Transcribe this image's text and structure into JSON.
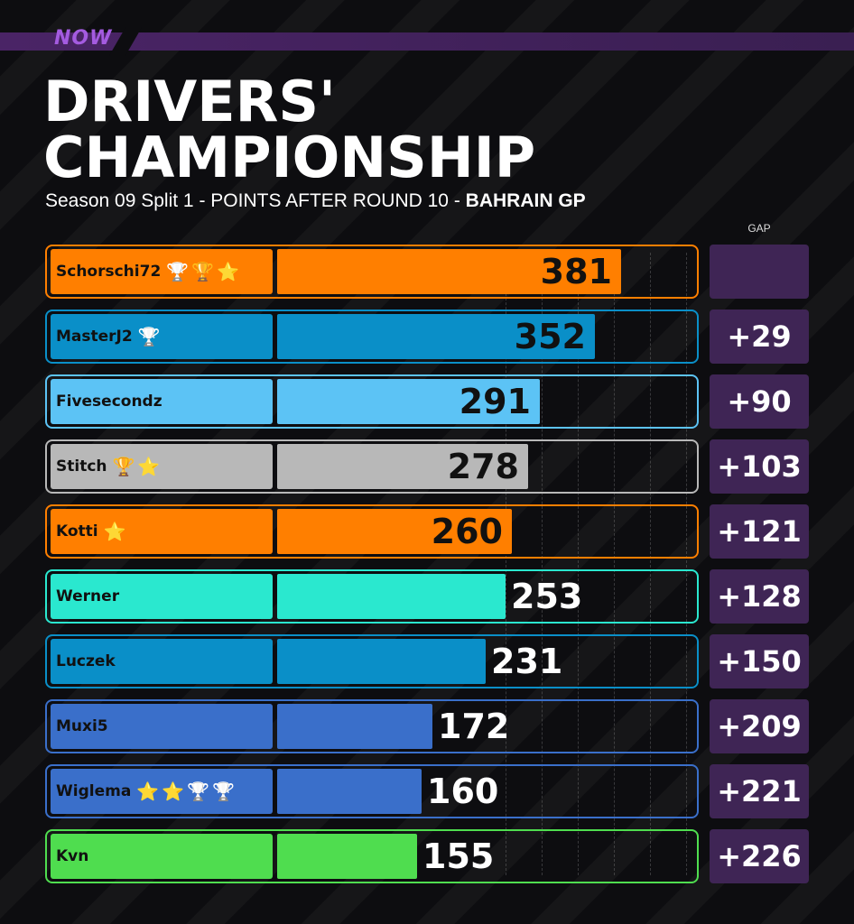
{
  "brand": {
    "logo_text": "NOW"
  },
  "header": {
    "title_line1": "DRIVERS'",
    "title_line2": "CHAMPIONSHIP",
    "subtitle": "Season 09 Split 1 - POINTS AFTER ROUND 10 - ",
    "subtitle_gp": "BAHRAIN GP",
    "gap_label": "GAP"
  },
  "chart_data": {
    "type": "bar",
    "orientation": "horizontal",
    "title": "DRIVERS' CHAMPIONSHIP",
    "subtitle": "Season 09 Split 1 - POINTS AFTER ROUND 10 - BAHRAIN GP",
    "xlim": [
      0,
      440
    ],
    "grid": true,
    "rows": [
      {
        "name": "Schorschi72",
        "points": 381,
        "gap": "",
        "color": "#ff7f00",
        "trophies": [
          "trophy-silver-icon",
          "trophy-gold-icon",
          "trophy-star-icon"
        ]
      },
      {
        "name": "MasterJ2",
        "points": 352,
        "gap": "+29",
        "color": "#0a8fc8",
        "trophies": [
          "trophy-silver-icon"
        ]
      },
      {
        "name": "Fivesecondz",
        "points": 291,
        "gap": "+90",
        "color": "#5cc3f5",
        "trophies": []
      },
      {
        "name": "Stitch",
        "points": 278,
        "gap": "+103",
        "color": "#b8b8b8",
        "trophies": [
          "trophy-gold-icon",
          "trophy-star-icon"
        ]
      },
      {
        "name": "Kotti",
        "points": 260,
        "gap": "+121",
        "color": "#ff7f00",
        "trophies": [
          "trophy-star-icon"
        ]
      },
      {
        "name": "Werner",
        "points": 253,
        "gap": "+128",
        "color": "#2ae8cf",
        "trophies": []
      },
      {
        "name": "Luczek",
        "points": 231,
        "gap": "+150",
        "color": "#0a8fc8",
        "trophies": []
      },
      {
        "name": "Muxi5",
        "points": 172,
        "gap": "+209",
        "color": "#3a6fca",
        "trophies": []
      },
      {
        "name": "Wiglema",
        "points": 160,
        "gap": "+221",
        "color": "#3a6fca",
        "trophies": [
          "trophy-star-icon",
          "trophy-star-icon",
          "trophy-silver-icon",
          "trophy-silver-icon"
        ]
      },
      {
        "name": "Kvn",
        "points": 155,
        "gap": "+226",
        "color": "#4fdd4f",
        "trophies": []
      }
    ]
  }
}
